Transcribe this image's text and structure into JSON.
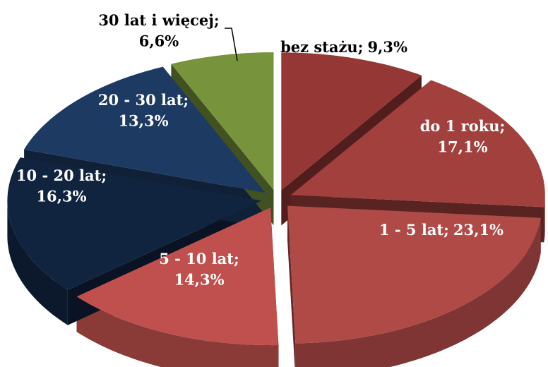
{
  "chart_data": {
    "type": "pie",
    "categories": [
      "bez stażu",
      "do 1 roku",
      "1 - 5 lat",
      "5 - 10 lat",
      "10 - 20 lat",
      "20 - 30 lat",
      "30 lat i więcej"
    ],
    "values": [
      9.3,
      17.1,
      23.1,
      14.3,
      16.3,
      13.3,
      6.6
    ],
    "value_labels": [
      "9,3%",
      "17,1%",
      "23,1%",
      "14,3%",
      "16,3%",
      "13,3%",
      "6,6%"
    ],
    "label_separator": ";",
    "colors": [
      "#953735",
      "#a1403d",
      "#b04a47",
      "#c0504d",
      "#10233f",
      "#1d3a62",
      "#77933c"
    ]
  }
}
